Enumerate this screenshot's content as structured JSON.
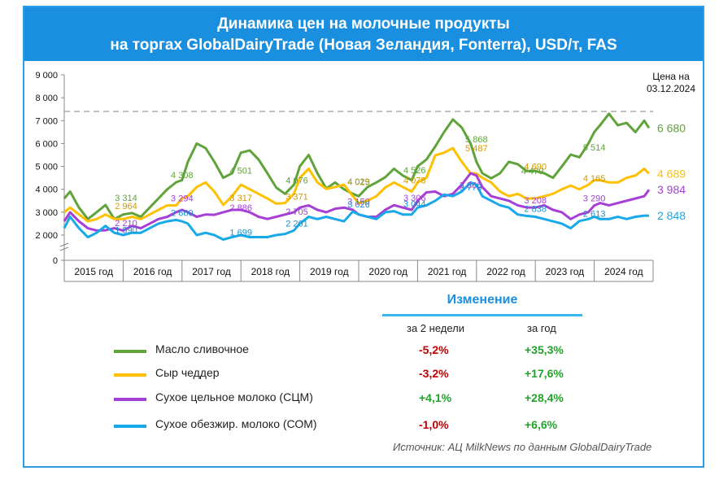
{
  "title": {
    "line1": "Динамика цен на молочные продукты",
    "line2": "на торгах GlobalDairyTrade (Новая Зеландия, Fonterra), USD/т, FAS"
  },
  "price_note": {
    "line1": "Цена на",
    "line2": "03.12.2024"
  },
  "changes": {
    "header": "Изменение",
    "col1": "за 2 недели",
    "col2": "за год"
  },
  "legend": [
    {
      "label": "Масло сливочное",
      "color": "#5fa33a",
      "two_weeks": "-5,2%",
      "year": "+35,3%",
      "two_weeks_color": "#c00000",
      "year_color": "#22a22a"
    },
    {
      "label": "Сыр чеддер",
      "color": "#ffc000",
      "two_weeks": "-3,2%",
      "year": "+17,6%",
      "two_weeks_color": "#c00000",
      "year_color": "#22a22a"
    },
    {
      "label": "Сухое цельное молоко (СЦМ)",
      "color": "#a53fd6",
      "two_weeks": "+4,1%",
      "year": "+28,4%",
      "two_weeks_color": "#22a22a",
      "year_color": "#22a22a"
    },
    {
      "label": "Сухое обезжир. молоко (СОМ)",
      "color": "#19a8e8",
      "two_weeks": "-1,0%",
      "year": "+6,6%",
      "two_weeks_color": "#c00000",
      "year_color": "#22a22a"
    }
  ],
  "source": "Источник: АЦ MilkNews по данным GlobalDairyTrade",
  "chart_data": {
    "type": "line",
    "x_type": "year_fraction",
    "x_range": [
      2015.0,
      2025.0
    ],
    "ylim": [
      0,
      9000
    ],
    "y_ticks": [
      "0",
      "2 000",
      "3 000",
      "4 000",
      "5 000",
      "6 000",
      "7 000",
      "8 000",
      "9 000"
    ],
    "y_tick_values": [
      0,
      2000,
      3000,
      4000,
      5000,
      6000,
      7000,
      8000,
      9000
    ],
    "categories": [
      "2015 год",
      "2016 год",
      "2017 год",
      "2018 год",
      "2019 год",
      "2020 год",
      "2021 год",
      "2022 год",
      "2023 год",
      "2024 год"
    ],
    "reference_line": 7400,
    "series": [
      {
        "name": "Масло сливочное",
        "color": "#5fa33a",
        "end_label": "6 680",
        "x": [
          2015.0,
          2015.1,
          2015.25,
          2015.4,
          2015.55,
          2015.7,
          2015.85,
          2016.0,
          2016.15,
          2016.3,
          2016.45,
          2016.6,
          2016.75,
          2016.9,
          2017.0,
          2017.1,
          2017.25,
          2017.4,
          2017.55,
          2017.7,
          2017.85,
          2018.0,
          2018.15,
          2018.3,
          2018.45,
          2018.6,
          2018.75,
          2018.9,
          2019.0,
          2019.15,
          2019.3,
          2019.45,
          2019.6,
          2019.75,
          2019.9,
          2020.0,
          2020.15,
          2020.3,
          2020.45,
          2020.6,
          2020.75,
          2020.9,
          2021.0,
          2021.15,
          2021.3,
          2021.45,
          2021.6,
          2021.75,
          2021.9,
          2022.0,
          2022.1,
          2022.25,
          2022.4,
          2022.55,
          2022.7,
          2022.85,
          2023.0,
          2023.15,
          2023.3,
          2023.45,
          2023.6,
          2023.75,
          2023.9,
          2024.0,
          2024.1,
          2024.25,
          2024.4,
          2024.55,
          2024.7,
          2024.85,
          2024.93
        ],
        "y": [
          3600,
          3900,
          3200,
          2700,
          3000,
          3314,
          2700,
          2900,
          2964,
          2800,
          3200,
          3600,
          4000,
          4308,
          4400,
          5200,
          6000,
          5800,
          5200,
          4501,
          4700,
          5600,
          5700,
          5300,
          4700,
          4076,
          3800,
          4200,
          5000,
          5500,
          4700,
          4029,
          4300,
          4000,
          3800,
          3700,
          4100,
          4300,
          4526,
          4900,
          4600,
          4400,
          5000,
          5300,
          5868,
          6500,
          7050,
          6700,
          6000,
          5200,
          4700,
          4479,
          4700,
          5200,
          5100,
          4800,
          4800,
          4700,
          4500,
          5000,
          5514,
          5400,
          6000,
          6500,
          6800,
          7300,
          6800,
          6900,
          6500,
          7000,
          6680
        ]
      },
      {
        "name": "Сыр чеддер",
        "color": "#ffc000",
        "end_label": "4 689",
        "x": [
          2015.0,
          2015.1,
          2015.25,
          2015.4,
          2015.55,
          2015.7,
          2015.85,
          2016.0,
          2016.15,
          2016.3,
          2016.45,
          2016.6,
          2016.75,
          2016.9,
          2017.0,
          2017.1,
          2017.25,
          2017.4,
          2017.55,
          2017.7,
          2017.85,
          2018.0,
          2018.15,
          2018.3,
          2018.45,
          2018.6,
          2018.75,
          2018.9,
          2019.0,
          2019.15,
          2019.3,
          2019.45,
          2019.6,
          2019.75,
          2019.9,
          2020.0,
          2020.15,
          2020.3,
          2020.45,
          2020.6,
          2020.75,
          2020.9,
          2021.0,
          2021.15,
          2021.3,
          2021.45,
          2021.6,
          2021.75,
          2021.9,
          2022.0,
          2022.1,
          2022.25,
          2022.4,
          2022.55,
          2022.7,
          2022.85,
          2023.0,
          2023.15,
          2023.3,
          2023.45,
          2023.6,
          2023.75,
          2023.9,
          2024.0,
          2024.1,
          2024.25,
          2024.4,
          2024.55,
          2024.7,
          2024.85,
          2024.93
        ],
        "y": [
          3000,
          3200,
          2900,
          2600,
          2700,
          2900,
          2700,
          2700,
          2800,
          2700,
          2900,
          3100,
          3300,
          3294,
          3600,
          3700,
          4100,
          4300,
          3900,
          3317,
          3700,
          4200,
          4000,
          3800,
          3600,
          3371,
          3400,
          3800,
          4500,
          4900,
          4300,
          4015,
          4100,
          4200,
          3700,
          3400,
          3500,
          3700,
          4078,
          4300,
          4100,
          3900,
          4300,
          4500,
          5487,
          5600,
          5800,
          5200,
          4700,
          4690,
          4500,
          4300,
          3900,
          3700,
          3800,
          3600,
          3600,
          3700,
          3800,
          4000,
          4165,
          4000,
          4200,
          4400,
          4400,
          4300,
          4300,
          4500,
          4600,
          4900,
          4689
        ]
      },
      {
        "name": "Сухое цельное молоко (СЦМ)",
        "color": "#a53fd6",
        "end_label": "3 984",
        "x": [
          2015.0,
          2015.1,
          2015.25,
          2015.4,
          2015.55,
          2015.7,
          2015.85,
          2016.0,
          2016.15,
          2016.3,
          2016.45,
          2016.6,
          2016.75,
          2016.9,
          2017.0,
          2017.1,
          2017.25,
          2017.4,
          2017.55,
          2017.7,
          2017.85,
          2018.0,
          2018.15,
          2018.3,
          2018.45,
          2018.6,
          2018.75,
          2018.9,
          2019.0,
          2019.15,
          2019.3,
          2019.45,
          2019.6,
          2019.75,
          2019.9,
          2020.0,
          2020.15,
          2020.3,
          2020.45,
          2020.6,
          2020.75,
          2020.9,
          2021.0,
          2021.15,
          2021.3,
          2021.45,
          2021.6,
          2021.75,
          2021.9,
          2022.0,
          2022.1,
          2022.25,
          2022.4,
          2022.55,
          2022.7,
          2022.85,
          2023.0,
          2023.15,
          2023.3,
          2023.45,
          2023.6,
          2023.75,
          2023.9,
          2024.0,
          2024.1,
          2024.25,
          2024.4,
          2024.55,
          2024.7,
          2024.85,
          2024.93
        ],
        "y": [
          2600,
          3000,
          2600,
          2300,
          2200,
          2210,
          2300,
          2200,
          2400,
          2300,
          2500,
          2700,
          2800,
          3000,
          3100,
          3000,
          2800,
          2900,
          2886,
          3000,
          3100,
          3100,
          3000,
          2800,
          2705,
          2800,
          2900,
          3000,
          3200,
          3300,
          3100,
          3000,
          3150,
          3200,
          3100,
          2900,
          2800,
          2800,
          3100,
          3306,
          3200,
          3100,
          3500,
          3866,
          3900,
          3700,
          3800,
          4200,
          4700,
          4600,
          4100,
          3700,
          3600,
          3500,
          3300,
          3208,
          3200,
          3300,
          3100,
          3000,
          2700,
          2900,
          3000,
          3290,
          3400,
          3300,
          3400,
          3500,
          3600,
          3700,
          3984
        ]
      },
      {
        "name": "Сухое обезжир. молоко (СОМ)",
        "color": "#19a8e8",
        "end_label": "2 848",
        "x": [
          2015.0,
          2015.1,
          2015.25,
          2015.4,
          2015.55,
          2015.7,
          2015.85,
          2016.0,
          2016.15,
          2016.3,
          2016.45,
          2016.6,
          2016.75,
          2016.9,
          2017.0,
          2017.1,
          2017.25,
          2017.4,
          2017.55,
          2017.7,
          2017.85,
          2018.0,
          2018.15,
          2018.3,
          2018.45,
          2018.6,
          2018.75,
          2018.9,
          2019.0,
          2019.15,
          2019.3,
          2019.45,
          2019.6,
          2019.75,
          2019.9,
          2020.0,
          2020.15,
          2020.3,
          2020.45,
          2020.6,
          2020.75,
          2020.9,
          2021.0,
          2021.15,
          2021.3,
          2021.45,
          2021.6,
          2021.75,
          2021.9,
          2022.0,
          2022.1,
          2022.25,
          2022.4,
          2022.55,
          2022.7,
          2022.85,
          2023.0,
          2023.15,
          2023.3,
          2023.45,
          2023.6,
          2023.75,
          2023.9,
          2024.0,
          2024.1,
          2024.25,
          2024.4,
          2024.55,
          2024.7,
          2024.85,
          2024.93
        ],
        "y": [
          2300,
          2800,
          2300,
          1890,
          2100,
          2400,
          2100,
          2000,
          2100,
          2100,
          2300,
          2500,
          2600,
          2660,
          2600,
          2500,
          2000,
          2100,
          2000,
          1699,
          1900,
          2000,
          1900,
          1900,
          1900,
          2000,
          2050,
          2201,
          2500,
          2800,
          2700,
          2800,
          2700,
          2600,
          3026,
          2900,
          2800,
          2700,
          3000,
          3044,
          2900,
          2900,
          3200,
          3300,
          3500,
          3773,
          3700,
          3900,
          4300,
          4200,
          3700,
          3500,
          3300,
          3200,
          2900,
          2838,
          2800,
          2700,
          2600,
          2500,
          2300,
          2613,
          2700,
          2800,
          2700,
          2700,
          2800,
          2700,
          2800,
          2850,
          2848
        ]
      }
    ],
    "annotations": [
      {
        "text": "3 314",
        "x": 2016.05,
        "y": 3314,
        "color": "#5fa33a"
      },
      {
        "text": "4 308",
        "x": 2017.0,
        "y": 4308,
        "color": "#5fa33a"
      },
      {
        "text": "4 501",
        "x": 2018.0,
        "y": 4501,
        "color": "#5fa33a"
      },
      {
        "text": "4 076",
        "x": 2018.95,
        "y": 4076,
        "color": "#5fa33a"
      },
      {
        "text": "4 029",
        "x": 2020.0,
        "y": 4029,
        "color": "#5fa33a"
      },
      {
        "text": "4 526",
        "x": 2020.95,
        "y": 4526,
        "color": "#5fa33a"
      },
      {
        "text": "5 868",
        "x": 2022.0,
        "y": 5868,
        "color": "#5fa33a"
      },
      {
        "text": "4 479",
        "x": 2022.95,
        "y": 4479,
        "color": "#5fa33a"
      },
      {
        "text": "5 514",
        "x": 2024.0,
        "y": 5514,
        "color": "#5fa33a"
      },
      {
        "text": "2 964",
        "x": 2016.05,
        "y": 2964,
        "color": "#d19a00"
      },
      {
        "text": "3 317",
        "x": 2018.0,
        "y": 3317,
        "color": "#d19a00"
      },
      {
        "text": "3 371",
        "x": 2018.95,
        "y": 3371,
        "color": "#d19a00"
      },
      {
        "text": "4 015",
        "x": 2020.0,
        "y": 4015,
        "color": "#d19a00"
      },
      {
        "text": "4 078",
        "x": 2020.95,
        "y": 4078,
        "color": "#d19a00"
      },
      {
        "text": "5 487",
        "x": 2022.0,
        "y": 5487,
        "color": "#d19a00"
      },
      {
        "text": "4 690",
        "x": 2023.0,
        "y": 4690,
        "color": "#d19a00"
      },
      {
        "text": "4 165",
        "x": 2024.0,
        "y": 4165,
        "color": "#d19a00"
      },
      {
        "text": "3 294",
        "x": 2017.0,
        "y": 3294,
        "color": "#a53fd6"
      },
      {
        "text": "2 210",
        "x": 2016.05,
        "y": 2210,
        "color": "#a53fd6"
      },
      {
        "text": "2 886",
        "x": 2018.0,
        "y": 2886,
        "color": "#a53fd6"
      },
      {
        "text": "2 705",
        "x": 2018.95,
        "y": 2705,
        "color": "#a53fd6"
      },
      {
        "text": "3 150",
        "x": 2020.0,
        "y": 3150,
        "color": "#a53fd6"
      },
      {
        "text": "3 306",
        "x": 2020.95,
        "y": 3306,
        "color": "#a53fd6"
      },
      {
        "text": "3 866",
        "x": 2021.9,
        "y": 3866,
        "color": "#a53fd6"
      },
      {
        "text": "3 208",
        "x": 2023.0,
        "y": 3208,
        "color": "#a53fd6"
      },
      {
        "text": "3 290",
        "x": 2024.0,
        "y": 3290,
        "color": "#a53fd6"
      },
      {
        "text": "1 890",
        "x": 2016.05,
        "y": 1890,
        "color": "#1a8fd0"
      },
      {
        "text": "2 660",
        "x": 2017.0,
        "y": 2660,
        "color": "#1a8fd0"
      },
      {
        "text": "1 699",
        "x": 2018.0,
        "y": 1699,
        "color": "#1a8fd0"
      },
      {
        "text": "2 201",
        "x": 2018.95,
        "y": 2201,
        "color": "#1a8fd0"
      },
      {
        "text": "3 026",
        "x": 2020.0,
        "y": 3026,
        "color": "#1a8fd0"
      },
      {
        "text": "3 044",
        "x": 2020.95,
        "y": 3044,
        "color": "#1a8fd0"
      },
      {
        "text": "3 773",
        "x": 2021.9,
        "y": 3773,
        "color": "#1a8fd0"
      },
      {
        "text": "2 838",
        "x": 2023.0,
        "y": 2838,
        "color": "#1a8fd0"
      },
      {
        "text": "2 613",
        "x": 2024.0,
        "y": 2613,
        "color": "#1a8fd0"
      }
    ]
  }
}
